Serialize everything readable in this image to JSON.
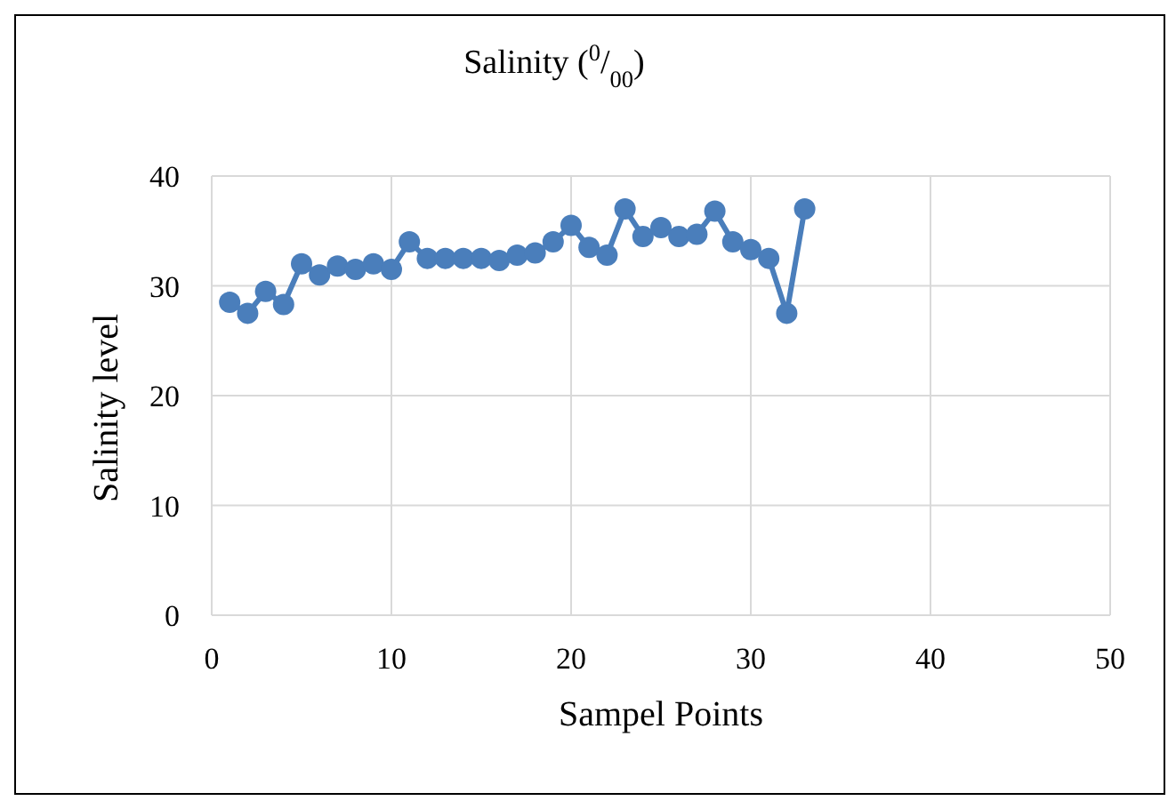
{
  "chart_data": {
    "type": "line",
    "title": "Salinity ($^{0}$/$_{00}$)",
    "xlabel": "Sampel Points",
    "ylabel": "Salinity level",
    "x": [
      1,
      2,
      3,
      4,
      5,
      6,
      7,
      8,
      9,
      10,
      11,
      12,
      13,
      14,
      15,
      16,
      17,
      18,
      19,
      20,
      21,
      22,
      23,
      24,
      25,
      26,
      27,
      28,
      29,
      30,
      31,
      32,
      33
    ],
    "series": [
      {
        "color": "#4a7ebb",
        "values": [
          28.5,
          27.5,
          29.5,
          28.3,
          32,
          31,
          31.8,
          31.5,
          32,
          31.5,
          34,
          32.5,
          32.5,
          32.5,
          32.5,
          32.3,
          32.8,
          33,
          34,
          35.5,
          33.5,
          32.8,
          37,
          34.5,
          35.3,
          34.5,
          34.7,
          36.8,
          34,
          33.3,
          32.5,
          27.5,
          37
        ]
      }
    ],
    "xlim": [
      0,
      50
    ],
    "xticks": [
      0,
      10,
      20,
      30,
      40,
      50
    ],
    "ylim": [
      0,
      40
    ],
    "yticks": [
      0,
      10,
      20,
      30,
      40
    ],
    "grid": true,
    "marker": "circle",
    "line_style": "solid"
  }
}
